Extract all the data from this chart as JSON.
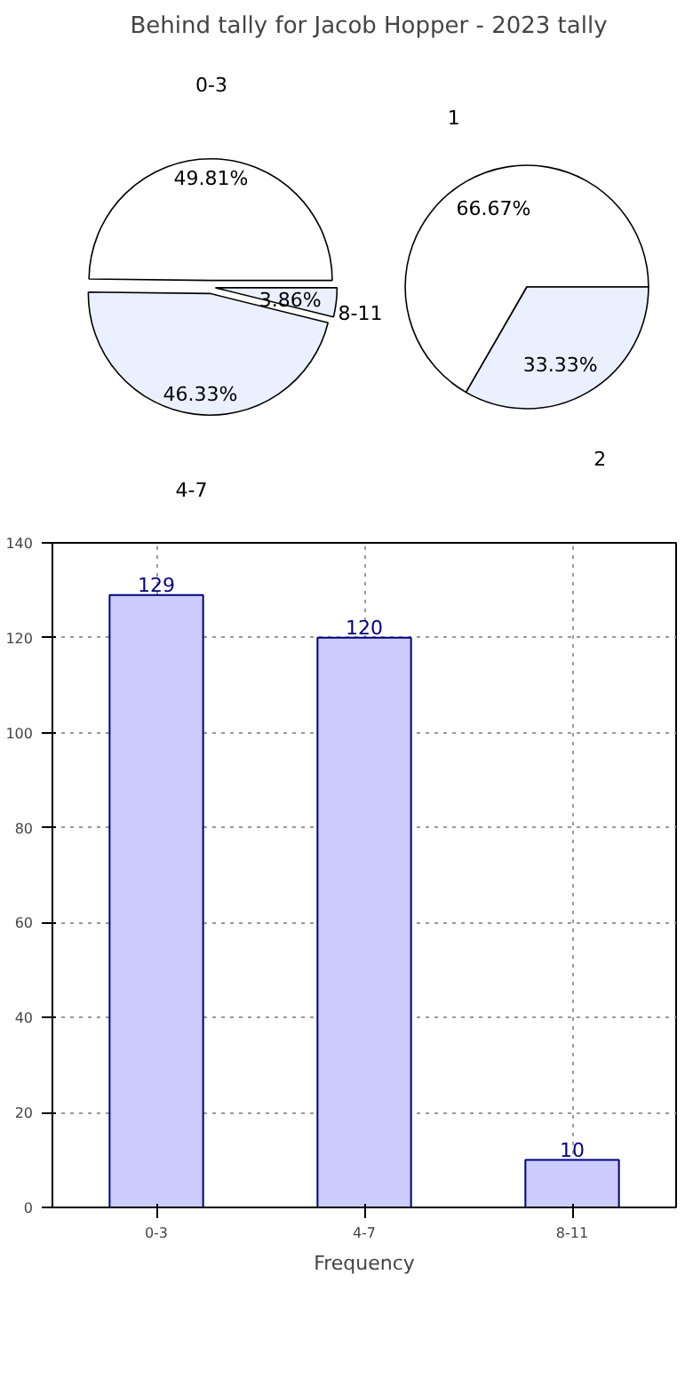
{
  "chart_data": [
    {
      "type": "pie",
      "title": "Behind tally for Jacob Hopper - 2023 tally",
      "categories": [
        "0-3",
        "4-7",
        "8-11"
      ],
      "values": [
        49.81,
        46.33,
        3.86
      ],
      "value_labels": [
        "49.81%",
        "46.33%",
        "3.86%"
      ],
      "colors": [
        "#ffffff",
        "#eaf0fe",
        "#eaf0fe"
      ]
    },
    {
      "type": "pie",
      "categories": [
        "1",
        "2"
      ],
      "values": [
        66.67,
        33.33
      ],
      "value_labels": [
        "66.67%",
        "33.33%"
      ],
      "colors": [
        "#ffffff",
        "#eaf0fe"
      ]
    },
    {
      "type": "bar",
      "xlabel": "Frequency",
      "categories": [
        "0-3",
        "4-7",
        "8-11"
      ],
      "values": [
        129,
        120,
        10
      ],
      "color": "#ccccff",
      "ylim": [
        0,
        140
      ],
      "yticks": [
        0,
        20,
        40,
        60,
        80,
        100,
        120,
        140
      ],
      "grid": true,
      "data_labels": true
    }
  ]
}
